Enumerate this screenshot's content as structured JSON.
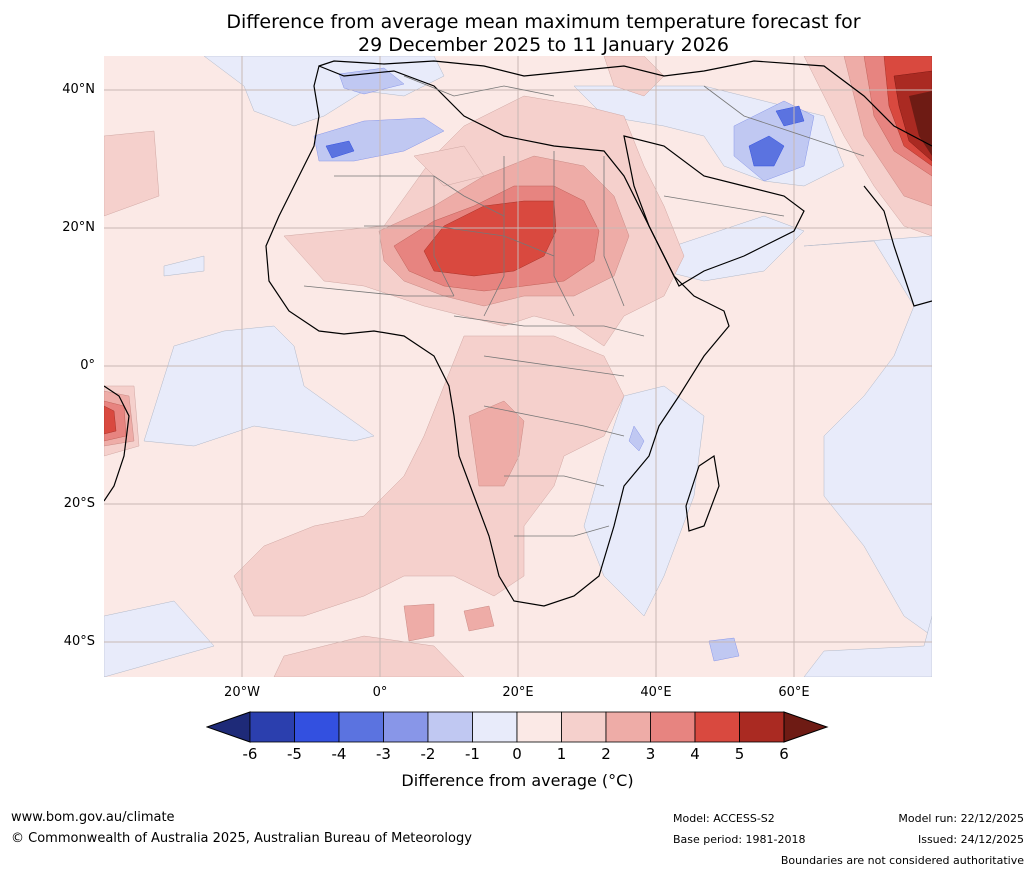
{
  "title": {
    "line1": "Difference from average mean maximum temperature forecast for",
    "line2": "29 December 2025 to 11 January 2026"
  },
  "map": {
    "lat_labels": [
      "40°N",
      "20°N",
      "0°",
      "20°S",
      "40°S"
    ],
    "lon_labels": [
      "20°W",
      "0°",
      "20°E",
      "40°E",
      "60°E"
    ],
    "lat_values": [
      40,
      20,
      0,
      -20,
      -40
    ],
    "lon_values": [
      -20,
      0,
      20,
      40,
      60
    ],
    "extent": {
      "lon_min": -40,
      "lon_max": 80,
      "lat_min": -45,
      "lat_max": 45
    },
    "gridlines": true
  },
  "legend": {
    "ticks": [
      "-6",
      "-5",
      "-4",
      "-3",
      "-2",
      "-1",
      "0",
      "1",
      "2",
      "3",
      "4",
      "5",
      "6"
    ],
    "label": "Difference from average ($^\\circ$C)",
    "label_display": "Difference from average (°C)",
    "colors": [
      "#1e2a78",
      "#2b3fae",
      "#3350e0",
      "#5b73e0",
      "#8896e8",
      "#c0c8f2",
      "#e8ebfa",
      "#fbe9e6",
      "#f5d0cc",
      "#eeaca7",
      "#e78480",
      "#d9493f",
      "#aa2a22",
      "#6e1b14"
    ]
  },
  "footer": {
    "website": "www.bom.gov.au/climate",
    "copyright": "© Commonwealth of Australia 2025, Australian Bureau of Meteorology",
    "model": "Model: ACCESS-S2",
    "base_period": "Base period: 1981-2018",
    "model_run": "Model run: 22/12/2025",
    "issued": "Issued: 24/12/2025",
    "boundaries": "Boundaries are not considered authoritative"
  }
}
